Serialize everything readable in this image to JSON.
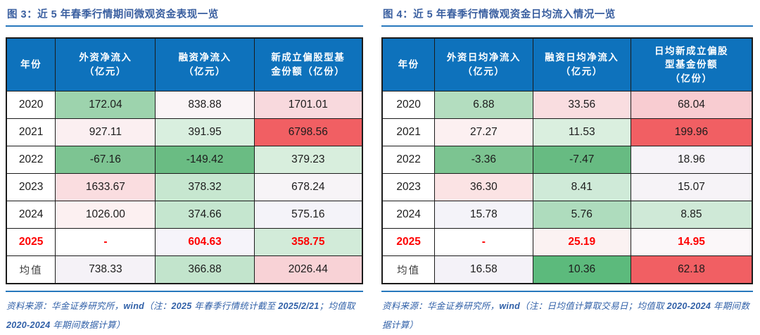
{
  "colors": {
    "table_header_bg": "#0e72bc",
    "table_header_text": "#ffffff",
    "title_text": "#3a5fa0",
    "rule_blue": "#2778bd",
    "highlight_red": "#fe0000",
    "strong_red_bg": "#f15f63",
    "border": "#1b1b1b",
    "footnote_text": "#2f5fa7"
  },
  "figures": [
    {
      "title": "图 3：近 5 年春季行情期间微观资金表现一览",
      "columns": [
        "年份",
        "外资净流入\n（亿元）",
        "融资净流入\n（亿元）",
        "新成立偏股型基\n金份额（亿份）"
      ],
      "col_widths": [
        "13.8%",
        "28.1%",
        "27.7%",
        "30.4%"
      ],
      "rows": [
        {
          "year": "2020",
          "highlight": false,
          "muted": false,
          "cells": [
            {
              "v": "172.04",
              "bg": "#9dd3ad"
            },
            {
              "v": "838.88",
              "bg": "#faf4f6"
            },
            {
              "v": "1701.01",
              "bg": "#f8d9dd"
            }
          ]
        },
        {
          "year": "2021",
          "highlight": false,
          "muted": false,
          "cells": [
            {
              "v": "927.11",
              "bg": "#fbeff1"
            },
            {
              "v": "391.95",
              "bg": "#d9efdf"
            },
            {
              "v": "6798.56",
              "bg": "#f15f63"
            }
          ]
        },
        {
          "year": "2022",
          "highlight": false,
          "muted": false,
          "cells": [
            {
              "v": "-67.16",
              "bg": "#7dc492"
            },
            {
              "v": "-149.42",
              "bg": "#6abc83"
            },
            {
              "v": "379.23",
              "bg": "#d8eedd"
            }
          ]
        },
        {
          "year": "2023",
          "highlight": false,
          "muted": false,
          "cells": [
            {
              "v": "1633.67",
              "bg": "#fadde0"
            },
            {
              "v": "378.32",
              "bg": "#c7e7d0"
            },
            {
              "v": "678.24",
              "bg": "#f7f4f7"
            }
          ]
        },
        {
          "year": "2024",
          "highlight": false,
          "muted": false,
          "cells": [
            {
              "v": "1026.00",
              "bg": "#fcf0f1"
            },
            {
              "v": "374.66",
              "bg": "#c5e6cf"
            },
            {
              "v": "575.16",
              "bg": "#f4f3f9"
            }
          ]
        },
        {
          "year": "2025",
          "highlight": true,
          "muted": false,
          "cells": [
            {
              "v": "-",
              "bg": "#ffffff"
            },
            {
              "v": "604.63",
              "bg": "#f6f4fa"
            },
            {
              "v": "358.75",
              "bg": "#d2ebd9"
            }
          ]
        },
        {
          "year": "均值",
          "highlight": false,
          "muted": true,
          "cells": [
            {
              "v": "738.33",
              "bg": "#f5f2f7"
            },
            {
              "v": "366.88",
              "bg": "#c2e4cc"
            },
            {
              "v": "2026.44",
              "bg": "#f8d2d6"
            }
          ]
        }
      ],
      "footnote_runs": [
        {
          "t": "资料来源：华金证券研究所，"
        },
        {
          "t": "wind",
          "b": true
        },
        {
          "t": "（注："
        },
        {
          "t": "2025",
          "b": true
        },
        {
          "t": " 年春季行情统计截至 "
        },
        {
          "t": "2025/2/21",
          "b": true
        },
        {
          "t": "；均值取 "
        },
        {
          "t": "2020-2024",
          "b": true
        },
        {
          "t": " 年期间数据计算）"
        }
      ]
    },
    {
      "title": "图 4：近 5 年春季行情微观资金日均流入情况一览",
      "columns": [
        "年份",
        "外资日均净流入\n（亿元）",
        "融资日均净流入\n（亿元）",
        "日均新成立偏股\n型基金份额\n（亿份）"
      ],
      "col_widths": [
        "14.2%",
        "26.5%",
        "26.5%",
        "32.8%"
      ],
      "rows": [
        {
          "year": "2020",
          "highlight": false,
          "muted": false,
          "cells": [
            {
              "v": "6.88",
              "bg": "#b3ddbf"
            },
            {
              "v": "33.56",
              "bg": "#f9dde0"
            },
            {
              "v": "68.04",
              "bg": "#f8ccd1"
            }
          ]
        },
        {
          "year": "2021",
          "highlight": false,
          "muted": false,
          "cells": [
            {
              "v": "27.27",
              "bg": "#fcf0f1"
            },
            {
              "v": "11.53",
              "bg": "#daefdf"
            },
            {
              "v": "199.96",
              "bg": "#f15f63"
            }
          ]
        },
        {
          "year": "2022",
          "highlight": false,
          "muted": false,
          "cells": [
            {
              "v": "-3.36",
              "bg": "#7cc491"
            },
            {
              "v": "-7.47",
              "bg": "#67bb82"
            },
            {
              "v": "18.96",
              "bg": "#f6f3f8"
            }
          ]
        },
        {
          "year": "2023",
          "highlight": false,
          "muted": false,
          "cells": [
            {
              "v": "36.30",
              "bg": "#fbe3e4"
            },
            {
              "v": "8.41",
              "bg": "#cfead8"
            },
            {
              "v": "15.07",
              "bg": "#f6f3f7"
            }
          ]
        },
        {
          "year": "2024",
          "highlight": false,
          "muted": false,
          "cells": [
            {
              "v": "15.78",
              "bg": "#f4f3f9"
            },
            {
              "v": "5.76",
              "bg": "#aedcbd"
            },
            {
              "v": "8.85",
              "bg": "#cfe9d7"
            }
          ]
        },
        {
          "year": "2025",
          "highlight": true,
          "muted": false,
          "cells": [
            {
              "v": "-",
              "bg": "#ffffff"
            },
            {
              "v": "25.19",
              "bg": "#fbf2f2"
            },
            {
              "v": "14.95",
              "bg": "#fbf7f9"
            }
          ]
        },
        {
          "year": "均值",
          "highlight": false,
          "muted": true,
          "cells": [
            {
              "v": "16.58",
              "bg": "#f4f2f8"
            },
            {
              "v": "10.36",
              "bg": "#5cba7c"
            },
            {
              "v": "62.18",
              "bg": "#f15f63"
            }
          ]
        }
      ],
      "footnote_runs": [
        {
          "t": "资料来源：华金证券研究所，"
        },
        {
          "t": "wind",
          "b": true
        },
        {
          "t": "（注：日均值计算取交易日；均值取 "
        },
        {
          "t": "2020-2024",
          "b": true
        },
        {
          "t": " 年期间数据计算）"
        }
      ]
    }
  ],
  "chart_data": [
    {
      "type": "table",
      "title": "图 3：近 5 年春季行情期间微观资金表现一览",
      "columns": [
        "年份",
        "外资净流入（亿元）",
        "融资净流入（亿元）",
        "新成立偏股型基金份额（亿份）"
      ],
      "rows": [
        [
          "2020",
          172.04,
          838.88,
          1701.01
        ],
        [
          "2021",
          927.11,
          391.95,
          6798.56
        ],
        [
          "2022",
          -67.16,
          -149.42,
          379.23
        ],
        [
          "2023",
          1633.67,
          378.32,
          678.24
        ],
        [
          "2024",
          1026.0,
          374.66,
          575.16
        ],
        [
          "2025",
          null,
          604.63,
          358.75
        ],
        [
          "均值",
          738.33,
          366.88,
          2026.44
        ]
      ],
      "source_note": "资料来源：华金证券研究所，wind（注：2025 年春季行情统计截至 2025/2/21；均值取 2020-2024 年期间数据计算）"
    },
    {
      "type": "table",
      "title": "图 4：近 5 年春季行情微观资金日均流入情况一览",
      "columns": [
        "年份",
        "外资日均净流入（亿元）",
        "融资日均净流入（亿元）",
        "日均新成立偏股型基金份额（亿份）"
      ],
      "rows": [
        [
          "2020",
          6.88,
          33.56,
          68.04
        ],
        [
          "2021",
          27.27,
          11.53,
          199.96
        ],
        [
          "2022",
          -3.36,
          -7.47,
          18.96
        ],
        [
          "2023",
          36.3,
          8.41,
          15.07
        ],
        [
          "2024",
          15.78,
          5.76,
          8.85
        ],
        [
          "2025",
          null,
          25.19,
          14.95
        ],
        [
          "均值",
          16.58,
          10.36,
          62.18
        ]
      ],
      "source_note": "资料来源：华金证券研究所，wind（注：日均值计算取交易日；均值取 2020-2024 年期间数据计算）"
    }
  ]
}
